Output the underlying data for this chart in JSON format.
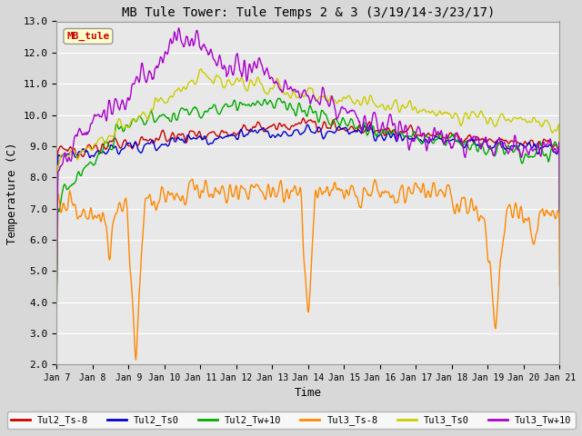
{
  "title": "MB Tule Tower: Tule Temps 2 & 3 (3/19/14-3/23/17)",
  "xlabel": "Time",
  "ylabel": "Temperature (C)",
  "ylim": [
    2.0,
    13.0
  ],
  "yticks": [
    2.0,
    3.0,
    4.0,
    5.0,
    6.0,
    7.0,
    8.0,
    9.0,
    10.0,
    11.0,
    12.0,
    13.0
  ],
  "xtick_labels": [
    "Jan 7",
    "Jan 8",
    "Jan 9",
    "Jan 10",
    "Jan 11",
    "Jan 12",
    "Jan 13",
    "Jan 14",
    "Jan 15",
    "Jan 16",
    "Jan 17",
    "Jan 18",
    "Jan 19",
    "Jan 20",
    "Jan 21"
  ],
  "series_colors": {
    "Tul2_Ts-8": "#cc0000",
    "Tul2_Ts0": "#0000cc",
    "Tul2_Tw+10": "#00aa00",
    "Tul3_Ts-8": "#ff8800",
    "Tul3_Ts0": "#cccc00",
    "Tul3_Tw+10": "#aa00cc"
  },
  "legend_label": "MB_tule",
  "background_color": "#d8d8d8",
  "plot_bg_color": "#e8e8e8",
  "grid_color": "#ffffff",
  "n_points": 800
}
